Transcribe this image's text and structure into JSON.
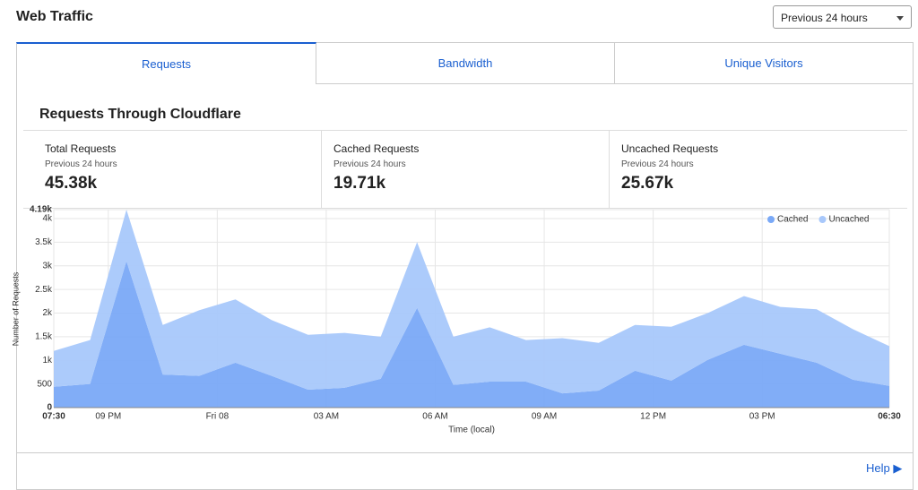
{
  "header": {
    "title": "Web Traffic",
    "range_select": "Previous 24 hours"
  },
  "tabs": [
    "Requests",
    "Bandwidth",
    "Unique Visitors"
  ],
  "active_tab": 0,
  "section_title": "Requests Through Cloudflare",
  "stats": [
    {
      "label": "Total Requests",
      "period": "Previous 24 hours",
      "value": "45.38k"
    },
    {
      "label": "Cached Requests",
      "period": "Previous 24 hours",
      "value": "19.71k"
    },
    {
      "label": "Uncached Requests",
      "period": "Previous 24 hours",
      "value": "25.67k"
    }
  ],
  "chart_data": {
    "type": "stacked_area",
    "x_label": "Time (local)",
    "y_label": "Number of Requests",
    "x": [
      0,
      1,
      2,
      3,
      4,
      5,
      6,
      7,
      8,
      9,
      10,
      11,
      12,
      13,
      14,
      15,
      16,
      17,
      18,
      19,
      20,
      21,
      22,
      23
    ],
    "xlim": [
      0,
      23
    ],
    "xticks": [
      {
        "value": 0,
        "label": "07:30"
      },
      {
        "value": 1.5,
        "label": "09 PM"
      },
      {
        "value": 4.5,
        "label": "Fri 08"
      },
      {
        "value": 7.5,
        "label": "03 AM"
      },
      {
        "value": 10.5,
        "label": "06 AM"
      },
      {
        "value": 13.5,
        "label": "09 AM"
      },
      {
        "value": 16.5,
        "label": "12 PM"
      },
      {
        "value": 19.5,
        "label": "03 PM"
      },
      {
        "value": 23,
        "label": "06:30"
      }
    ],
    "ylim": [
      0,
      4190
    ],
    "yticks": [
      0,
      500,
      {
        "value": 1000,
        "label": "1k"
      },
      {
        "value": 1500,
        "label": "1.5k"
      },
      {
        "value": 2000,
        "label": "2k"
      },
      {
        "value": 2500,
        "label": "2.5k"
      },
      {
        "value": 3000,
        "label": "3k"
      },
      {
        "value": 3500,
        "label": "3.5k"
      },
      {
        "value": 4000,
        "label": "4k"
      },
      {
        "value": 4190,
        "label": "4.19k"
      }
    ],
    "grid": true,
    "legend": "top-right",
    "series": [
      {
        "name": "Cached",
        "color": "#7aa9f7",
        "values": [
          440,
          500,
          3100,
          700,
          670,
          950,
          670,
          380,
          420,
          610,
          2110,
          480,
          550,
          550,
          300,
          360,
          780,
          570,
          1010,
          1330,
          1140,
          950,
          590,
          460
        ]
      },
      {
        "name": "Uncached",
        "color": "#a8c8fb",
        "values": [
          760,
          930,
          1090,
          1050,
          1390,
          1340,
          1180,
          1160,
          1160,
          890,
          1390,
          1020,
          1150,
          880,
          1170,
          1010,
          970,
          1140,
          990,
          1030,
          990,
          1130,
          1070,
          840
        ]
      }
    ]
  },
  "help": "Help"
}
